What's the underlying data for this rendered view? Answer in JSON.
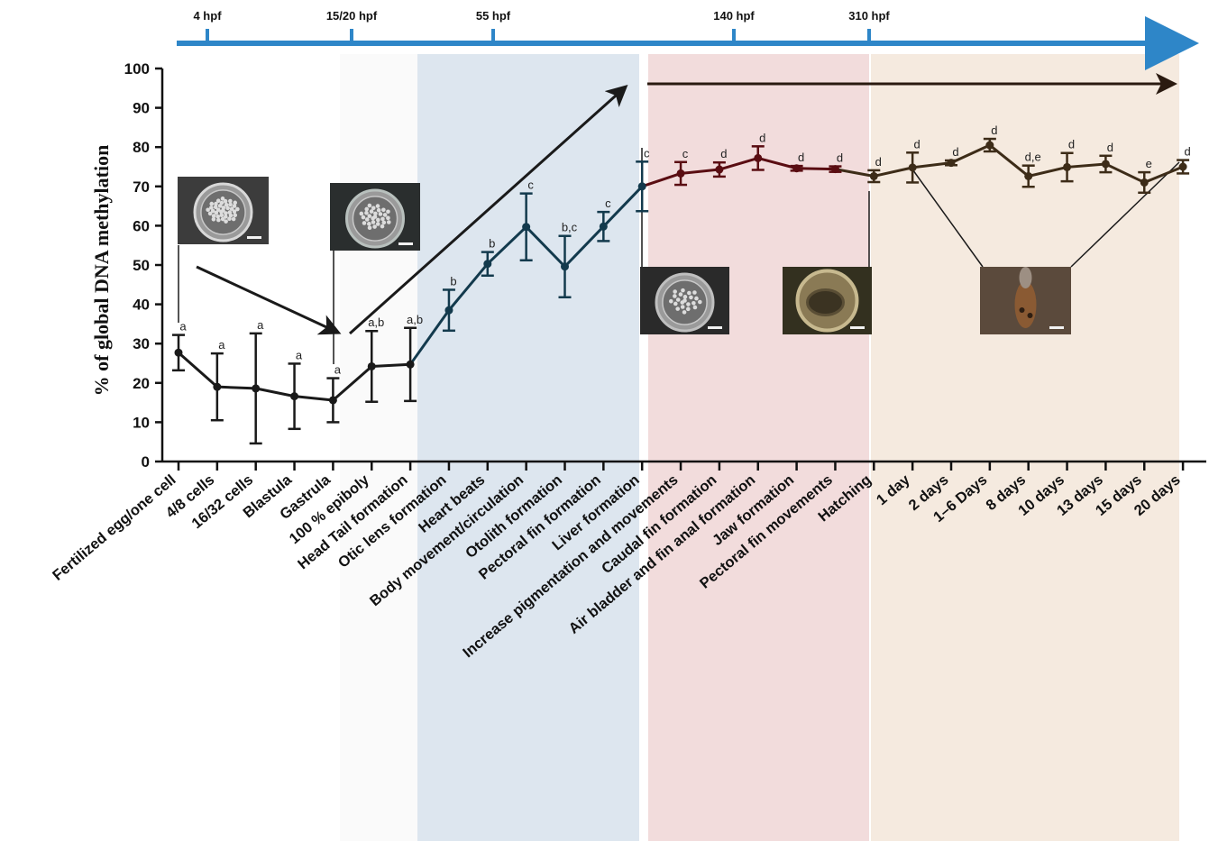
{
  "chart_data": {
    "type": "line",
    "title": "",
    "ylabel": "% of global DNA methylation",
    "xlabel": "",
    "ylim": [
      0,
      100
    ],
    "yticks": [
      "0",
      "10",
      "20",
      "30",
      "40",
      "50",
      "60",
      "70",
      "80",
      "90",
      "100"
    ],
    "grid": false,
    "categories": [
      "Fertilized egg/one cell",
      "4/8 cells",
      "16/32 cells",
      "Blastula",
      "Gastrula",
      "100 % epiboly",
      "Head Tail formation",
      "Otic lens formation",
      "Heart beats",
      "Body movement/circulation",
      "Otolith formation",
      "Pectoral fin formation",
      "Liver formation",
      "Increase pigmentation and movements",
      "Caudal fin formation",
      "Air bladder and fin anal formation",
      "Jaw formation",
      "Pectoral fin movements",
      "Hatching",
      "1 day",
      "2 days",
      "1–6 Days",
      "8 days",
      "10 days",
      "13 days",
      "15 days",
      "20 days"
    ],
    "values": [
      27.7,
      19,
      18.6,
      16.6,
      15.6,
      24.2,
      24.7,
      38.5,
      50.3,
      59.7,
      49.6,
      59.8,
      70,
      73.3,
      74.3,
      77.2,
      74.6,
      74.4,
      72.6,
      74.8,
      76,
      80.5,
      72.6,
      74.9,
      75.7,
      71,
      75
    ],
    "error": [
      4.5,
      8.5,
      14,
      8.3,
      5.6,
      9,
      9.3,
      5.2,
      3,
      8.5,
      7.8,
      3.7,
      6.3,
      2.9,
      1.8,
      3,
      0.6,
      0.7,
      1.5,
      3.8,
      0.6,
      1.6,
      2.7,
      3.6,
      2.1,
      2.6,
      1.7
    ],
    "significance": [
      "a",
      "a",
      "a",
      "a",
      "a",
      "a,b",
      "a,b",
      "b",
      "b",
      "c",
      "b,c",
      "c",
      "c",
      "c",
      "d",
      "d",
      "d",
      "d",
      "d",
      "d",
      "d",
      "d",
      "d,e",
      "d",
      "d",
      "e",
      "d"
    ],
    "timeline": {
      "labels": [
        "4 hpf",
        "15/20 hpf",
        "55 hpf",
        "140 hpf",
        "310 hpf"
      ],
      "color": "#2e86c8"
    },
    "phase_colors": [
      "#fafafa",
      "#dde6ef",
      "#f2dcdc",
      "#f5eadf"
    ],
    "segment_colors": [
      "#1a1a1a",
      "#133a4d",
      "#5a0d12",
      "#3d2c18"
    ],
    "images": [
      "egg-photo",
      "egg-epiboly-photo",
      "embryo-photo",
      "hatching-photo",
      "larva-photo"
    ]
  }
}
